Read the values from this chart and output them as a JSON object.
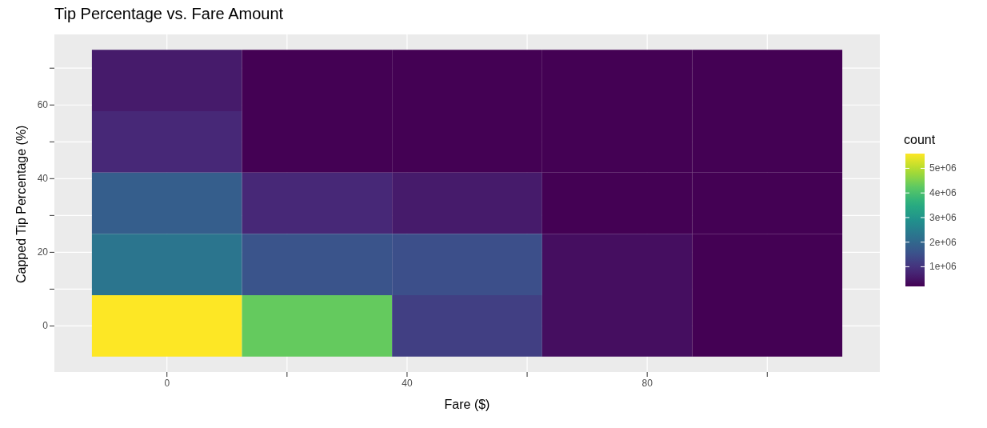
{
  "chart_data": {
    "type": "heatmap",
    "title": "Tip Percentage vs. Fare Amount",
    "xlabel": "Fare ($)",
    "ylabel": "Capped Tip Percentage (%)",
    "legend_title": "count",
    "x": [
      0,
      25,
      50,
      75,
      100
    ],
    "cells": [
      [
        600000,
        200000,
        200000,
        200000,
        200000
      ],
      [
        800000,
        200000,
        200000,
        200000,
        200000
      ],
      [
        1800000,
        800000,
        600000,
        200000,
        200000
      ],
      [
        2300000,
        1600000,
        1500000,
        400000,
        200000
      ],
      [
        5600000,
        4300000,
        1200000,
        400000,
        200000
      ]
    ],
    "clim": [
      200000,
      5600000
    ],
    "cticks": [
      {
        "value": 1000000,
        "label": "1e+06"
      },
      {
        "value": 2000000,
        "label": "2e+06"
      },
      {
        "value": 3000000,
        "label": "3e+06"
      },
      {
        "value": 4000000,
        "label": "4e+06"
      },
      {
        "value": 5000000,
        "label": "5e+06"
      }
    ],
    "xlim": [
      -18.75,
      118.75
    ],
    "xticks": [
      0,
      {
        "value": 20,
        "label": null
      },
      40,
      {
        "value": 60,
        "label": null
      },
      80,
      {
        "value": 100,
        "label": null
      }
    ],
    "ylim": [
      -12.5,
      79.17
    ],
    "yticks": [
      0,
      {
        "value": 10,
        "label": null
      },
      20,
      {
        "value": 30,
        "label": null
      },
      40,
      {
        "value": 50,
        "label": null
      },
      60,
      {
        "value": 70,
        "label": null
      }
    ],
    "grid": true
  }
}
